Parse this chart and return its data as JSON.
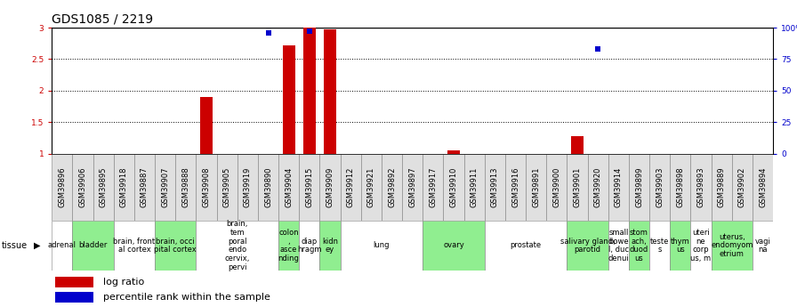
{
  "title": "GDS1085 / 2219",
  "samples": [
    "GSM39896",
    "GSM39906",
    "GSM39895",
    "GSM39918",
    "GSM39887",
    "GSM39907",
    "GSM39888",
    "GSM39908",
    "GSM39905",
    "GSM39919",
    "GSM39890",
    "GSM39904",
    "GSM39915",
    "GSM39909",
    "GSM39912",
    "GSM39921",
    "GSM39892",
    "GSM39897",
    "GSM39917",
    "GSM39910",
    "GSM39911",
    "GSM39913",
    "GSM39916",
    "GSM39891",
    "GSM39900",
    "GSM39901",
    "GSM39920",
    "GSM39914",
    "GSM39899",
    "GSM39903",
    "GSM39898",
    "GSM39893",
    "GSM39889",
    "GSM39902",
    "GSM39894"
  ],
  "log_ratio": [
    null,
    null,
    null,
    null,
    null,
    null,
    null,
    1.9,
    null,
    null,
    null,
    2.72,
    3.0,
    2.97,
    null,
    null,
    null,
    null,
    null,
    1.05,
    null,
    null,
    null,
    null,
    null,
    1.27,
    null,
    null,
    null,
    null,
    null,
    null,
    null,
    null,
    null
  ],
  "percentile_rank_pct": [
    null,
    null,
    null,
    null,
    null,
    null,
    null,
    null,
    null,
    null,
    96,
    null,
    97,
    null,
    null,
    null,
    null,
    null,
    null,
    null,
    null,
    null,
    null,
    null,
    null,
    null,
    83,
    null,
    null,
    null,
    null,
    null,
    null,
    null,
    null
  ],
  "tissue_groups": [
    {
      "label": "adrenal",
      "start": 0,
      "end": 1,
      "color": "#ffffff"
    },
    {
      "label": "bladder",
      "start": 1,
      "end": 3,
      "color": "#90ee90"
    },
    {
      "label": "brain, front\nal cortex",
      "start": 3,
      "end": 5,
      "color": "#ffffff"
    },
    {
      "label": "brain, occi\npital cortex",
      "start": 5,
      "end": 7,
      "color": "#90ee90"
    },
    {
      "label": "brain,\ntem\nporal\nendo\ncervix,\npervi",
      "start": 7,
      "end": 11,
      "color": "#ffffff"
    },
    {
      "label": "colon\n,\nasce\nnding",
      "start": 11,
      "end": 12,
      "color": "#90ee90"
    },
    {
      "label": "diap\nhragm",
      "start": 12,
      "end": 13,
      "color": "#ffffff"
    },
    {
      "label": "kidn\ney",
      "start": 13,
      "end": 14,
      "color": "#90ee90"
    },
    {
      "label": "lung",
      "start": 14,
      "end": 18,
      "color": "#ffffff"
    },
    {
      "label": "ovary",
      "start": 18,
      "end": 21,
      "color": "#90ee90"
    },
    {
      "label": "prostate",
      "start": 21,
      "end": 25,
      "color": "#ffffff"
    },
    {
      "label": "salivary gland,\nparotid",
      "start": 25,
      "end": 27,
      "color": "#90ee90"
    },
    {
      "label": "small\nbowe\nl, duc\ndenui",
      "start": 27,
      "end": 28,
      "color": "#ffffff"
    },
    {
      "label": "stom\nach,\nduod\nus",
      "start": 28,
      "end": 29,
      "color": "#90ee90"
    },
    {
      "label": "teste\ns",
      "start": 29,
      "end": 30,
      "color": "#ffffff"
    },
    {
      "label": "thym\nus",
      "start": 30,
      "end": 31,
      "color": "#90ee90"
    },
    {
      "label": "uteri\nne\ncorp\nus, m",
      "start": 31,
      "end": 32,
      "color": "#ffffff"
    },
    {
      "label": "uterus,\nendomyom\netrium",
      "start": 32,
      "end": 34,
      "color": "#90ee90"
    },
    {
      "label": "vagi\nna",
      "start": 34,
      "end": 35,
      "color": "#ffffff"
    }
  ],
  "ylim_left": [
    1,
    3
  ],
  "ylim_right": [
    0,
    100
  ],
  "yticks_left": [
    1,
    1.5,
    2,
    2.5,
    3
  ],
  "ytick_labels_left": [
    "1",
    "1.5",
    "2",
    "2.5",
    "3"
  ],
  "yticks_right": [
    0,
    25,
    50,
    75,
    100
  ],
  "ytick_labels_right": [
    "0",
    "25",
    "50",
    "75",
    "100%"
  ],
  "bar_color": "#cc0000",
  "dot_color": "#0000cc",
  "background_color": "#ffffff",
  "title_fontsize": 10,
  "tick_fontsize": 6.5,
  "sample_fontsize": 6,
  "tissue_fontsize": 6,
  "legend_fontsize": 8
}
